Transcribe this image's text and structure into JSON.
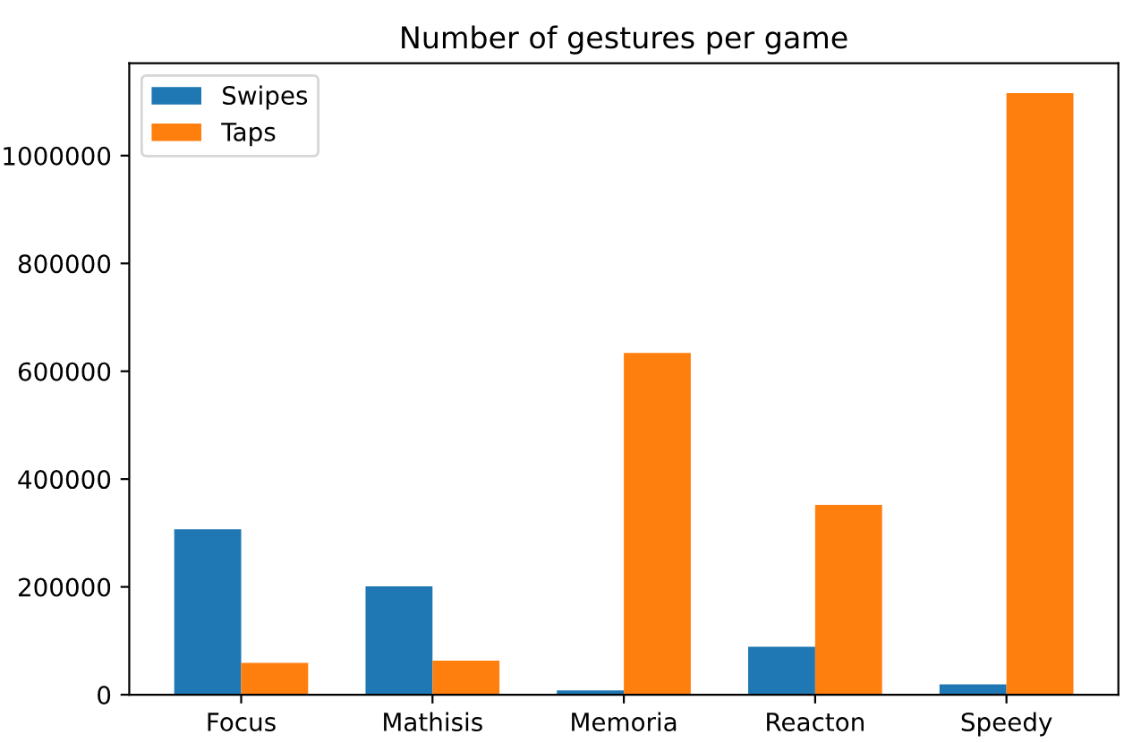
{
  "chart_data": {
    "type": "bar",
    "title": "Number of gestures per game",
    "categories": [
      "Focus",
      "Mathisis",
      "Memoria",
      "Reacton",
      "Speedy"
    ],
    "series": [
      {
        "name": "Swipes",
        "color": "#1f77b4",
        "values": [
          307000,
          201000,
          8000,
          89000,
          19000
        ]
      },
      {
        "name": "Taps",
        "color": "#ff7f0e",
        "values": [
          59000,
          63000,
          634000,
          352000,
          1116000
        ]
      }
    ],
    "ylim": [
      0,
      1171500
    ],
    "yticks": [
      0,
      200000,
      400000,
      600000,
      800000,
      1000000
    ],
    "grid": false,
    "legend": "top left"
  }
}
